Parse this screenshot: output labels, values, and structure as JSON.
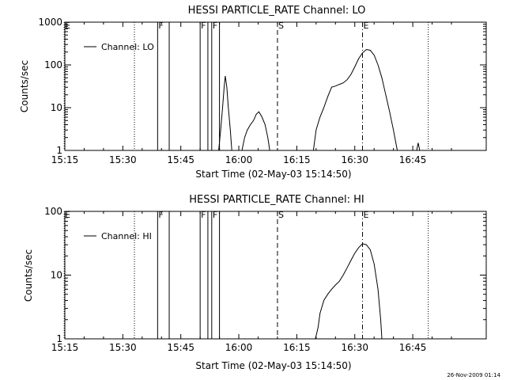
{
  "footer_stamp": "26-Nov-2009 01:14",
  "chart_data": [
    {
      "type": "line",
      "title": "HESSI PARTICLE_RATE Channel: LO",
      "xlabel": "Start Time (02-May-03 15:14:50)",
      "ylabel": "Counts/sec",
      "yscale": "log",
      "ylim": [
        1,
        1000
      ],
      "xlim_minutes_after_1515": [
        0,
        109
      ],
      "xticks": [
        "15:15",
        "15:30",
        "15:45",
        "16:00",
        "16:15",
        "16:30",
        "16:45"
      ],
      "yticks": [
        "1",
        "10",
        "100",
        "1000"
      ],
      "legend": "Channel: LO",
      "legend_position": "top-left",
      "markers": [
        {
          "time": "15:14:50",
          "label": "E",
          "style": "dotted"
        },
        {
          "time": "15:33",
          "label": "",
          "style": "dotted"
        },
        {
          "time": "15:39",
          "label": "F",
          "style": "solid"
        },
        {
          "time": "15:42",
          "label": "",
          "style": "solid"
        },
        {
          "time": "15:50",
          "label": "F",
          "style": "solid"
        },
        {
          "time": "15:52",
          "label": "",
          "style": "solid"
        },
        {
          "time": "15:53",
          "label": "F",
          "style": "solid"
        },
        {
          "time": "15:55",
          "label": "",
          "style": "solid"
        },
        {
          "time": "16:10",
          "label": "S",
          "style": "dashed"
        },
        {
          "time": "16:32",
          "label": "E",
          "style": "dashdot"
        },
        {
          "time": "16:49",
          "label": "",
          "style": "dotted"
        }
      ],
      "series": [
        {
          "name": "Channel: LO",
          "segments": [
            [
              [
                39.8,
                1
              ],
              [
                40.3,
                3
              ],
              [
                40.8,
                10
              ],
              [
                41.2,
                30
              ],
              [
                41.5,
                55
              ],
              [
                41.9,
                30
              ],
              [
                42.3,
                10
              ],
              [
                42.8,
                3
              ],
              [
                43.2,
                1
              ]
            ],
            [
              [
                45.8,
                1
              ],
              [
                46.5,
                2
              ],
              [
                47.2,
                3
              ],
              [
                48,
                4
              ],
              [
                48.8,
                5
              ],
              [
                49.5,
                7
              ],
              [
                50.2,
                8
              ],
              [
                51,
                6
              ],
              [
                51.8,
                4
              ],
              [
                52.5,
                2
              ],
              [
                53,
                1
              ]
            ],
            [
              [
                64.3,
                1
              ],
              [
                65,
                3
              ],
              [
                66,
                6
              ],
              [
                67,
                10
              ],
              [
                68,
                18
              ],
              [
                69,
                30
              ],
              [
                70,
                32
              ],
              [
                71,
                35
              ],
              [
                72,
                38
              ],
              [
                73,
                45
              ],
              [
                74,
                60
              ],
              [
                75,
                90
              ],
              [
                76,
                140
              ],
              [
                77,
                190
              ],
              [
                78,
                230
              ],
              [
                79,
                220
              ],
              [
                80,
                170
              ],
              [
                81,
                100
              ],
              [
                82,
                50
              ],
              [
                83,
                20
              ],
              [
                84,
                8
              ],
              [
                85,
                3
              ],
              [
                86,
                1
              ]
            ],
            [
              [
                91,
                1
              ],
              [
                91.4,
                1.5
              ],
              [
                91.8,
                1
              ]
            ]
          ]
        }
      ]
    },
    {
      "type": "line",
      "title": "HESSI PARTICLE_RATE Channel: HI",
      "xlabel": "Start Time (02-May-03 15:14:50)",
      "ylabel": "Counts/sec",
      "yscale": "log",
      "ylim": [
        1,
        100
      ],
      "xlim_minutes_after_1515": [
        0,
        109
      ],
      "xticks": [
        "15:15",
        "15:30",
        "15:45",
        "16:00",
        "16:15",
        "16:30",
        "16:45"
      ],
      "yticks": [
        "1",
        "10",
        "100"
      ],
      "legend": "Channel: HI",
      "legend_position": "top-left",
      "markers": [
        {
          "time": "15:14:50",
          "label": "E",
          "style": "dotted"
        },
        {
          "time": "15:33",
          "label": "",
          "style": "dotted"
        },
        {
          "time": "15:39",
          "label": "F",
          "style": "solid"
        },
        {
          "time": "15:42",
          "label": "",
          "style": "solid"
        },
        {
          "time": "15:50",
          "label": "F",
          "style": "solid"
        },
        {
          "time": "15:52",
          "label": "",
          "style": "solid"
        },
        {
          "time": "15:53",
          "label": "F",
          "style": "solid"
        },
        {
          "time": "15:55",
          "label": "",
          "style": "solid"
        },
        {
          "time": "16:10",
          "label": "S",
          "style": "dashed"
        },
        {
          "time": "16:32",
          "label": "E",
          "style": "dashdot"
        },
        {
          "time": "16:49",
          "label": "",
          "style": "dotted"
        }
      ],
      "series": [
        {
          "name": "Channel: HI",
          "segments": [
            [
              [
                64.8,
                1
              ],
              [
                65.5,
                1.5
              ],
              [
                66,
                2.5
              ],
              [
                67,
                4
              ],
              [
                68,
                5
              ],
              [
                69,
                6
              ],
              [
                70,
                7
              ],
              [
                71,
                8
              ],
              [
                72,
                10
              ],
              [
                73,
                13
              ],
              [
                74,
                17
              ],
              [
                75,
                22
              ],
              [
                76,
                27
              ],
              [
                77,
                31
              ],
              [
                78,
                30
              ],
              [
                79,
                25
              ],
              [
                80,
                15
              ],
              [
                81,
                6
              ],
              [
                81.7,
                2
              ],
              [
                82,
                1
              ]
            ]
          ]
        }
      ]
    }
  ]
}
